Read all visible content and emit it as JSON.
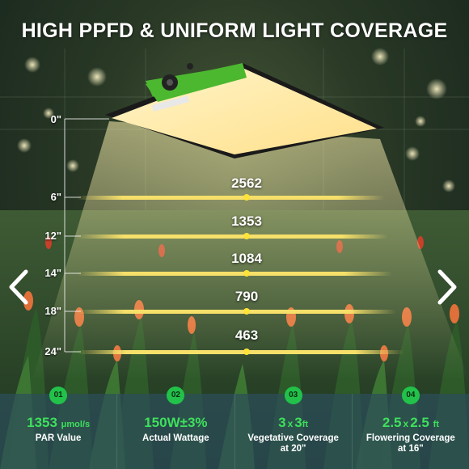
{
  "header": {
    "title": "HIGH PPFD & UNIFORM LIGHT COVERAGE"
  },
  "nav": {
    "prev_icon": "chevron-left-icon",
    "next_icon": "chevron-right-icon"
  },
  "colors": {
    "accent_green": "#22c24a",
    "light_yellow": "#f7e06a",
    "fixture_green": "#4cb830"
  },
  "measurements": [
    {
      "depth": "0\"",
      "ppfd": ""
    },
    {
      "depth": "6\"",
      "ppfd": "2562"
    },
    {
      "depth": "12\"",
      "ppfd": "1353"
    },
    {
      "depth": "14\"",
      "ppfd": "1084"
    },
    {
      "depth": "18\"",
      "ppfd": "790"
    },
    {
      "depth": "24\"",
      "ppfd": "463"
    }
  ],
  "features": [
    {
      "number": "01",
      "value": "1353",
      "unit": "μmol/s",
      "caption": "PAR Value"
    },
    {
      "number": "02",
      "value": "150W±3%",
      "unit": "",
      "caption": "Actual Wattage"
    },
    {
      "number": "03",
      "value_a": "3",
      "sep": "x",
      "value_b": "3",
      "unit": "ft",
      "caption_line1": "Vegetative Coverage",
      "caption_line2": "at 20\""
    },
    {
      "number": "04",
      "value_a": "2.5",
      "sep": "x",
      "value_b": "2.5",
      "unit": "ft",
      "caption_line1": "Flowering Coverage",
      "caption_line2": "at 16\""
    }
  ]
}
